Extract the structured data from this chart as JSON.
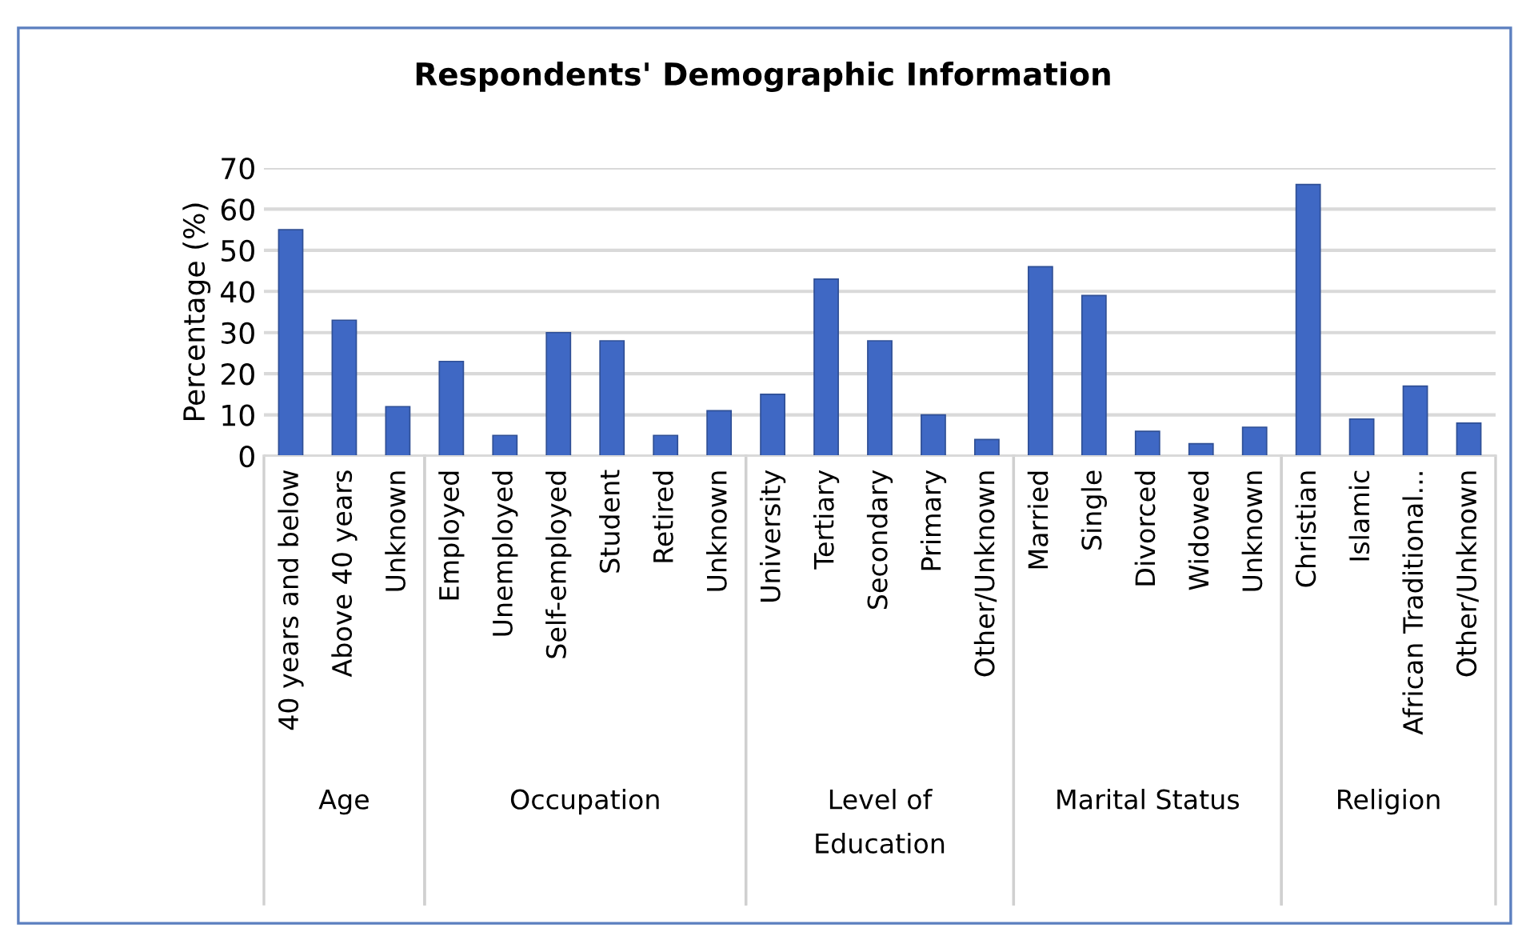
{
  "chart_data": {
    "type": "bar",
    "title": "Respondents' Demographic Information",
    "ylabel": "Percentage (%)",
    "categories": [
      "40 years and below",
      "Above 40 years",
      "Unknown",
      "Employed",
      "Unemployed",
      "Self-employed",
      "Student",
      "Retired",
      "Unknown",
      "University",
      "Tertiary",
      "Secondary",
      "Primary",
      "Other/Unknown",
      "Married",
      "Single",
      "Divorced",
      "Widowed",
      "Unknown",
      "Christian",
      "Islamic",
      "African Traditional...",
      "Other/Unknown"
    ],
    "values": [
      55,
      33,
      12,
      23,
      5,
      30,
      28,
      5,
      11,
      15,
      43,
      28,
      10,
      4,
      46,
      39,
      6,
      3,
      7,
      66,
      9,
      17,
      8
    ],
    "color": "#3f68c4",
    "ylim": [
      0,
      70
    ],
    "yticks": [
      0,
      10,
      20,
      30,
      40,
      50,
      60,
      70
    ],
    "grid": "y",
    "annotations": [
      "Age",
      "Occupation",
      "Level of\nEducation",
      "Marital Status",
      "Religion"
    ]
  }
}
